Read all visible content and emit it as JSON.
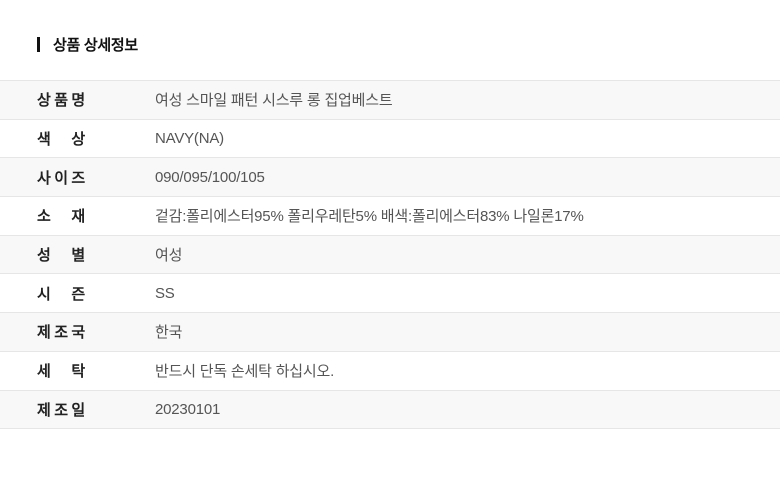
{
  "header": {
    "title": "상품 상세정보"
  },
  "table": {
    "rows": [
      {
        "label": "상품명",
        "value": "여성 스마일 패턴 시스루 롱 집업베스트"
      },
      {
        "label": "색상",
        "value": "NAVY(NA)"
      },
      {
        "label": "사이즈",
        "value": "090/095/100/105"
      },
      {
        "label": "소재",
        "value": "겉감:폴리에스터95% 폴리우레탄5% 배색:폴리에스터83% 나일론17%"
      },
      {
        "label": "성별",
        "value": "여성"
      },
      {
        "label": "시즌",
        "value": "SS"
      },
      {
        "label": "제조국",
        "value": "한국"
      },
      {
        "label": "세탁",
        "value": "반드시 단독 손세탁 하십시오."
      },
      {
        "label": "제조일",
        "value": "20230101"
      }
    ]
  },
  "theme": {
    "background": "#ffffff",
    "row_alt_bg": "#f8f8f8",
    "border": "#e6e6e6",
    "title_text": "#111111",
    "label_text": "#222222",
    "value_text": "#555555"
  }
}
